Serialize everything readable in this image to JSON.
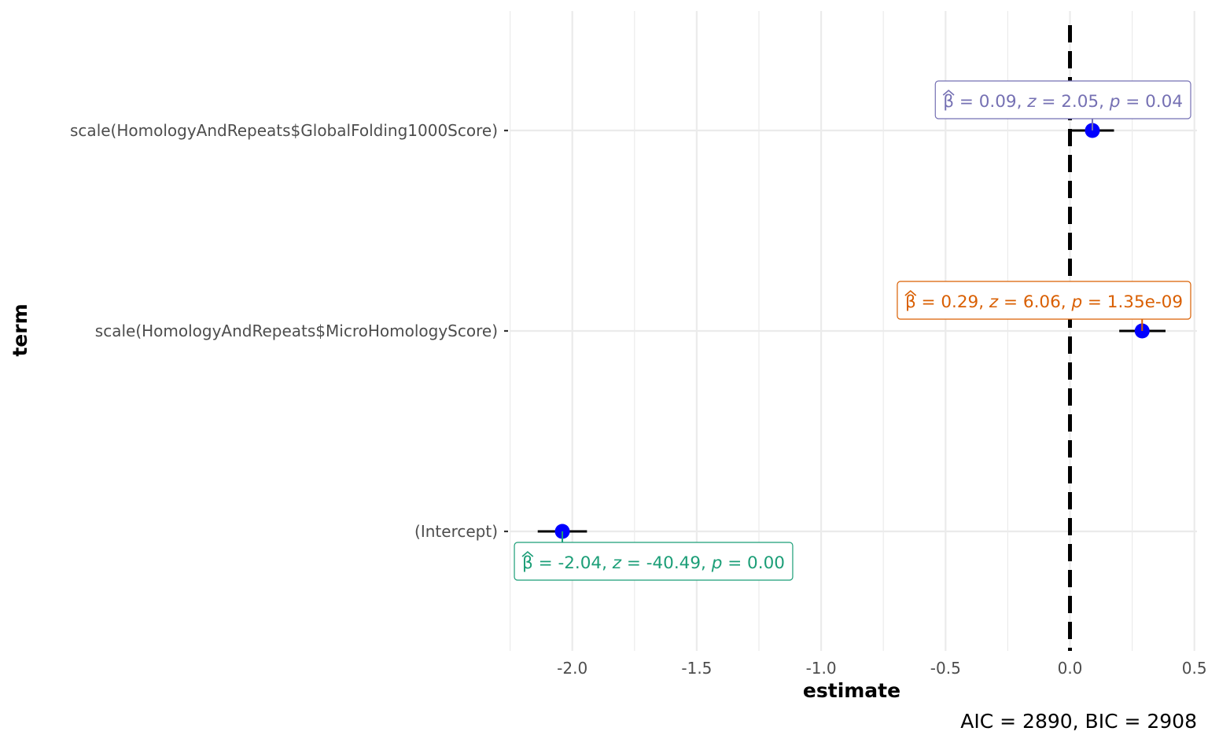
{
  "chart_data": {
    "type": "scatter",
    "subtype": "coefficient-plot",
    "xlabel": "estimate",
    "ylabel": "term",
    "xlim": [
      -2.25,
      0.5
    ],
    "x_ticks": [
      -2.0,
      -1.5,
      -1.0,
      -0.5,
      0.0,
      0.5
    ],
    "x_tick_labels": [
      "-2.0",
      "-1.5",
      "-1.0",
      "-0.5",
      "0.0",
      "0.5"
    ],
    "reference_line": {
      "x": 0,
      "style": "dashed",
      "color": "#000000"
    },
    "grid": true,
    "legend": "none",
    "point_color": "#0000ff",
    "terms": [
      {
        "term": "scale(HomologyAndRepeats$GlobalFolding1000Score)",
        "estimate": 0.09,
        "ci_low": 0.003,
        "ci_high": 0.177,
        "label_prefix": "= 0.09, ",
        "z_value": "= 2.05, ",
        "p_value": "= 0.04",
        "label_color": "#7570b3",
        "label_side": "above"
      },
      {
        "term": "scale(HomologyAndRepeats$MicroHomologyScore)",
        "estimate": 0.29,
        "ci_low": 0.198,
        "ci_high": 0.384,
        "label_prefix": "= 0.29, ",
        "z_value": "= 6.06, ",
        "p_value": "= 1.35e-09",
        "label_color": "#d95f02",
        "label_side": "above"
      },
      {
        "term": "(Intercept)",
        "estimate": -2.04,
        "ci_low": -2.139,
        "ci_high": -1.941,
        "label_prefix": "= -2.04, ",
        "z_value": "= -40.49, ",
        "p_value": "= 0.00",
        "label_color": "#1b9e77",
        "label_side": "below"
      }
    ],
    "caption": "AIC = 2890, BIC = 2908"
  }
}
